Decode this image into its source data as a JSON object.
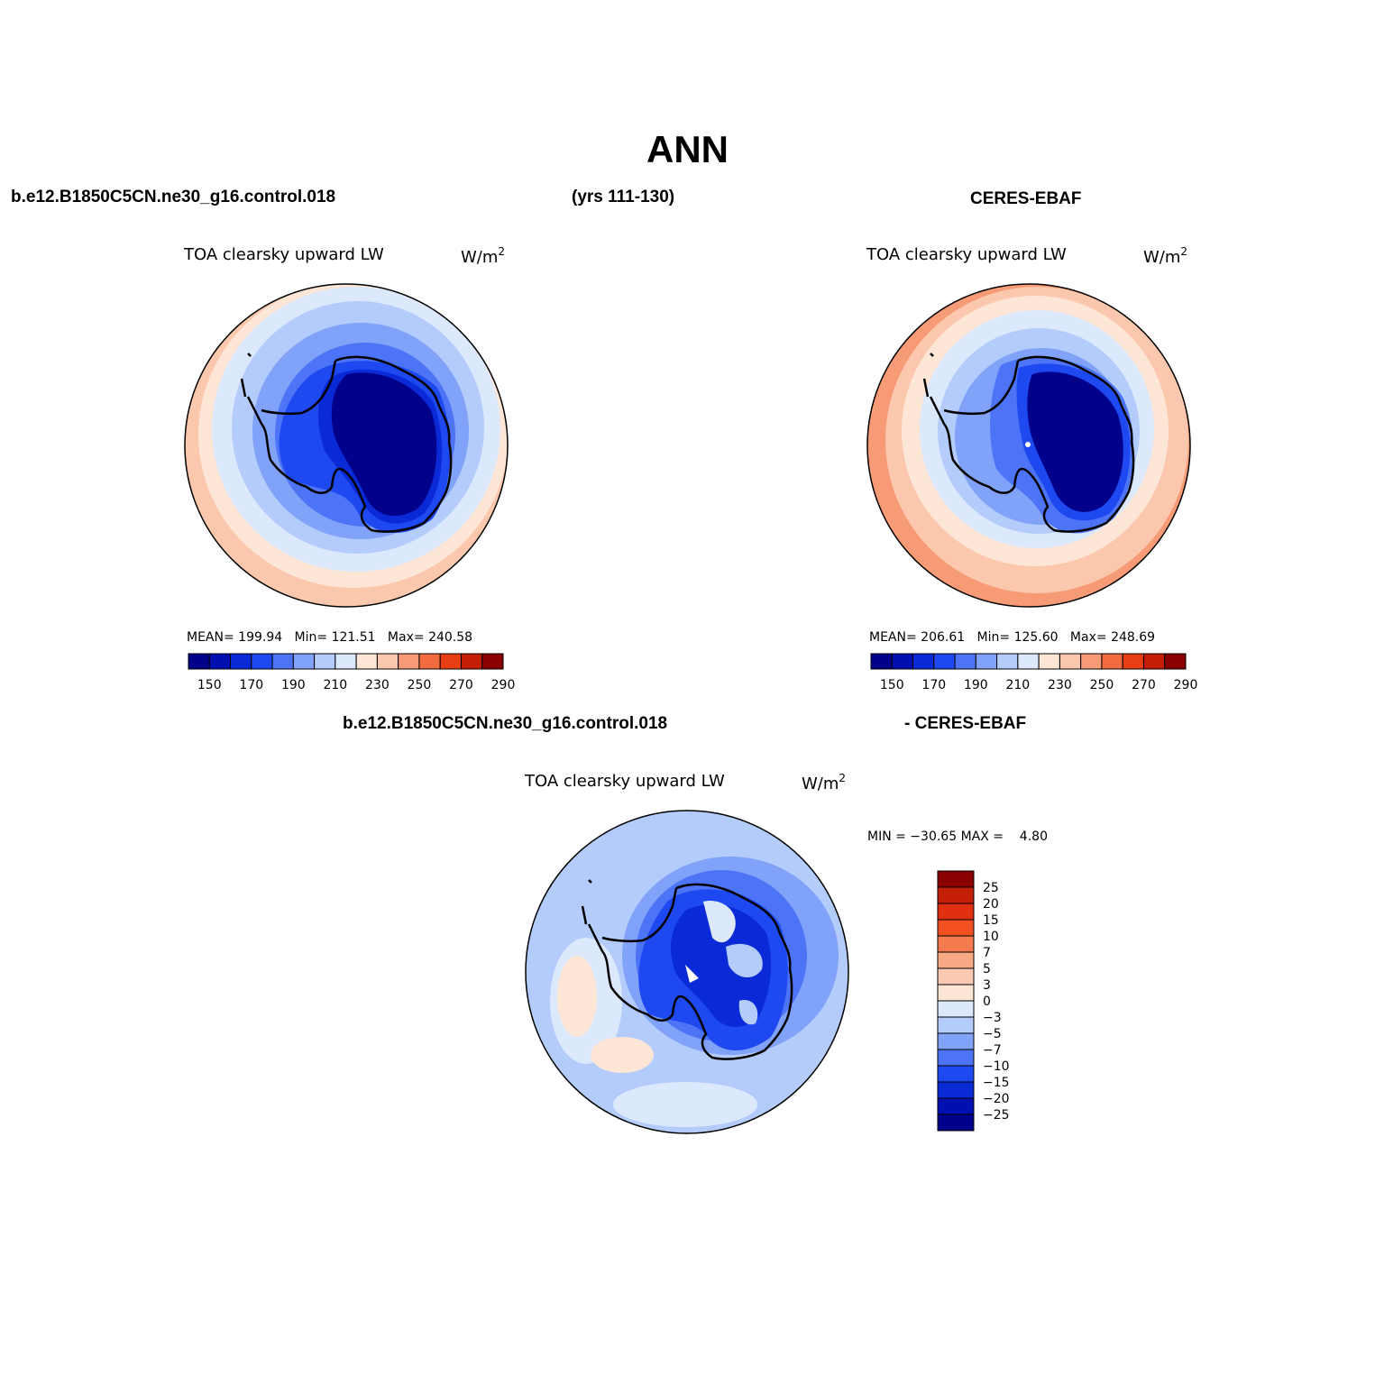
{
  "figure": {
    "title": "ANN",
    "top_left_case": "b.e12.B1850C5CN.ne30_g16.control.018",
    "top_years": "(yrs 111-130)",
    "top_right_obs": "CERES-EBAF",
    "diff_left_case": "b.e12.B1850C5CN.ne30_g16.control.018",
    "diff_right_obs": "- CERES-EBAF"
  },
  "panels": {
    "model": {
      "field": "TOA clearsky upward LW",
      "units_base": "W/m",
      "units_exp": "2",
      "mean_label": "MEAN=",
      "mean": "199.94",
      "min_label": "Min=",
      "min": "121.51",
      "max_label": "Max=",
      "max": "240.58"
    },
    "obs": {
      "field": "TOA clearsky upward LW",
      "units_base": "W/m",
      "units_exp": "2",
      "mean_label": "MEAN=",
      "mean": "206.61",
      "min_label": "Min=",
      "min": "125.60",
      "max_label": "Max=",
      "max": "248.69"
    },
    "diff": {
      "field": "TOA clearsky upward LW",
      "units_base": "W/m",
      "units_exp": "2",
      "minmax_text": "MIN = −30.65 MAX =    4.80"
    }
  },
  "colorbars": {
    "abs": {
      "labels": [
        "150",
        "170",
        "190",
        "210",
        "230",
        "250",
        "270",
        "290"
      ],
      "colors": [
        "#00008a",
        "#0010b0",
        "#0a2ad8",
        "#1e48f0",
        "#4d74f6",
        "#80a2f8",
        "#b4ccfb",
        "#dce9fd",
        "#fde6d6",
        "#fbc8ae",
        "#f79a76",
        "#f26a40",
        "#e83e14",
        "#c41e06",
        "#8a0000"
      ]
    },
    "diff": {
      "labels": [
        "25",
        "20",
        "15",
        "10",
        "7",
        "5",
        "3",
        "0",
        "−3",
        "−5",
        "−7",
        "−10",
        "−15",
        "−20",
        "−25"
      ],
      "colors": [
        "#8a0000",
        "#c41e06",
        "#e03010",
        "#f25020",
        "#f47a50",
        "#f8a882",
        "#fbcab2",
        "#fde6d6",
        "#dce9fd",
        "#b4ccfb",
        "#80a2f8",
        "#4d74f6",
        "#1e48f0",
        "#0a2ad8",
        "#0010b0",
        "#00008a"
      ]
    }
  }
}
